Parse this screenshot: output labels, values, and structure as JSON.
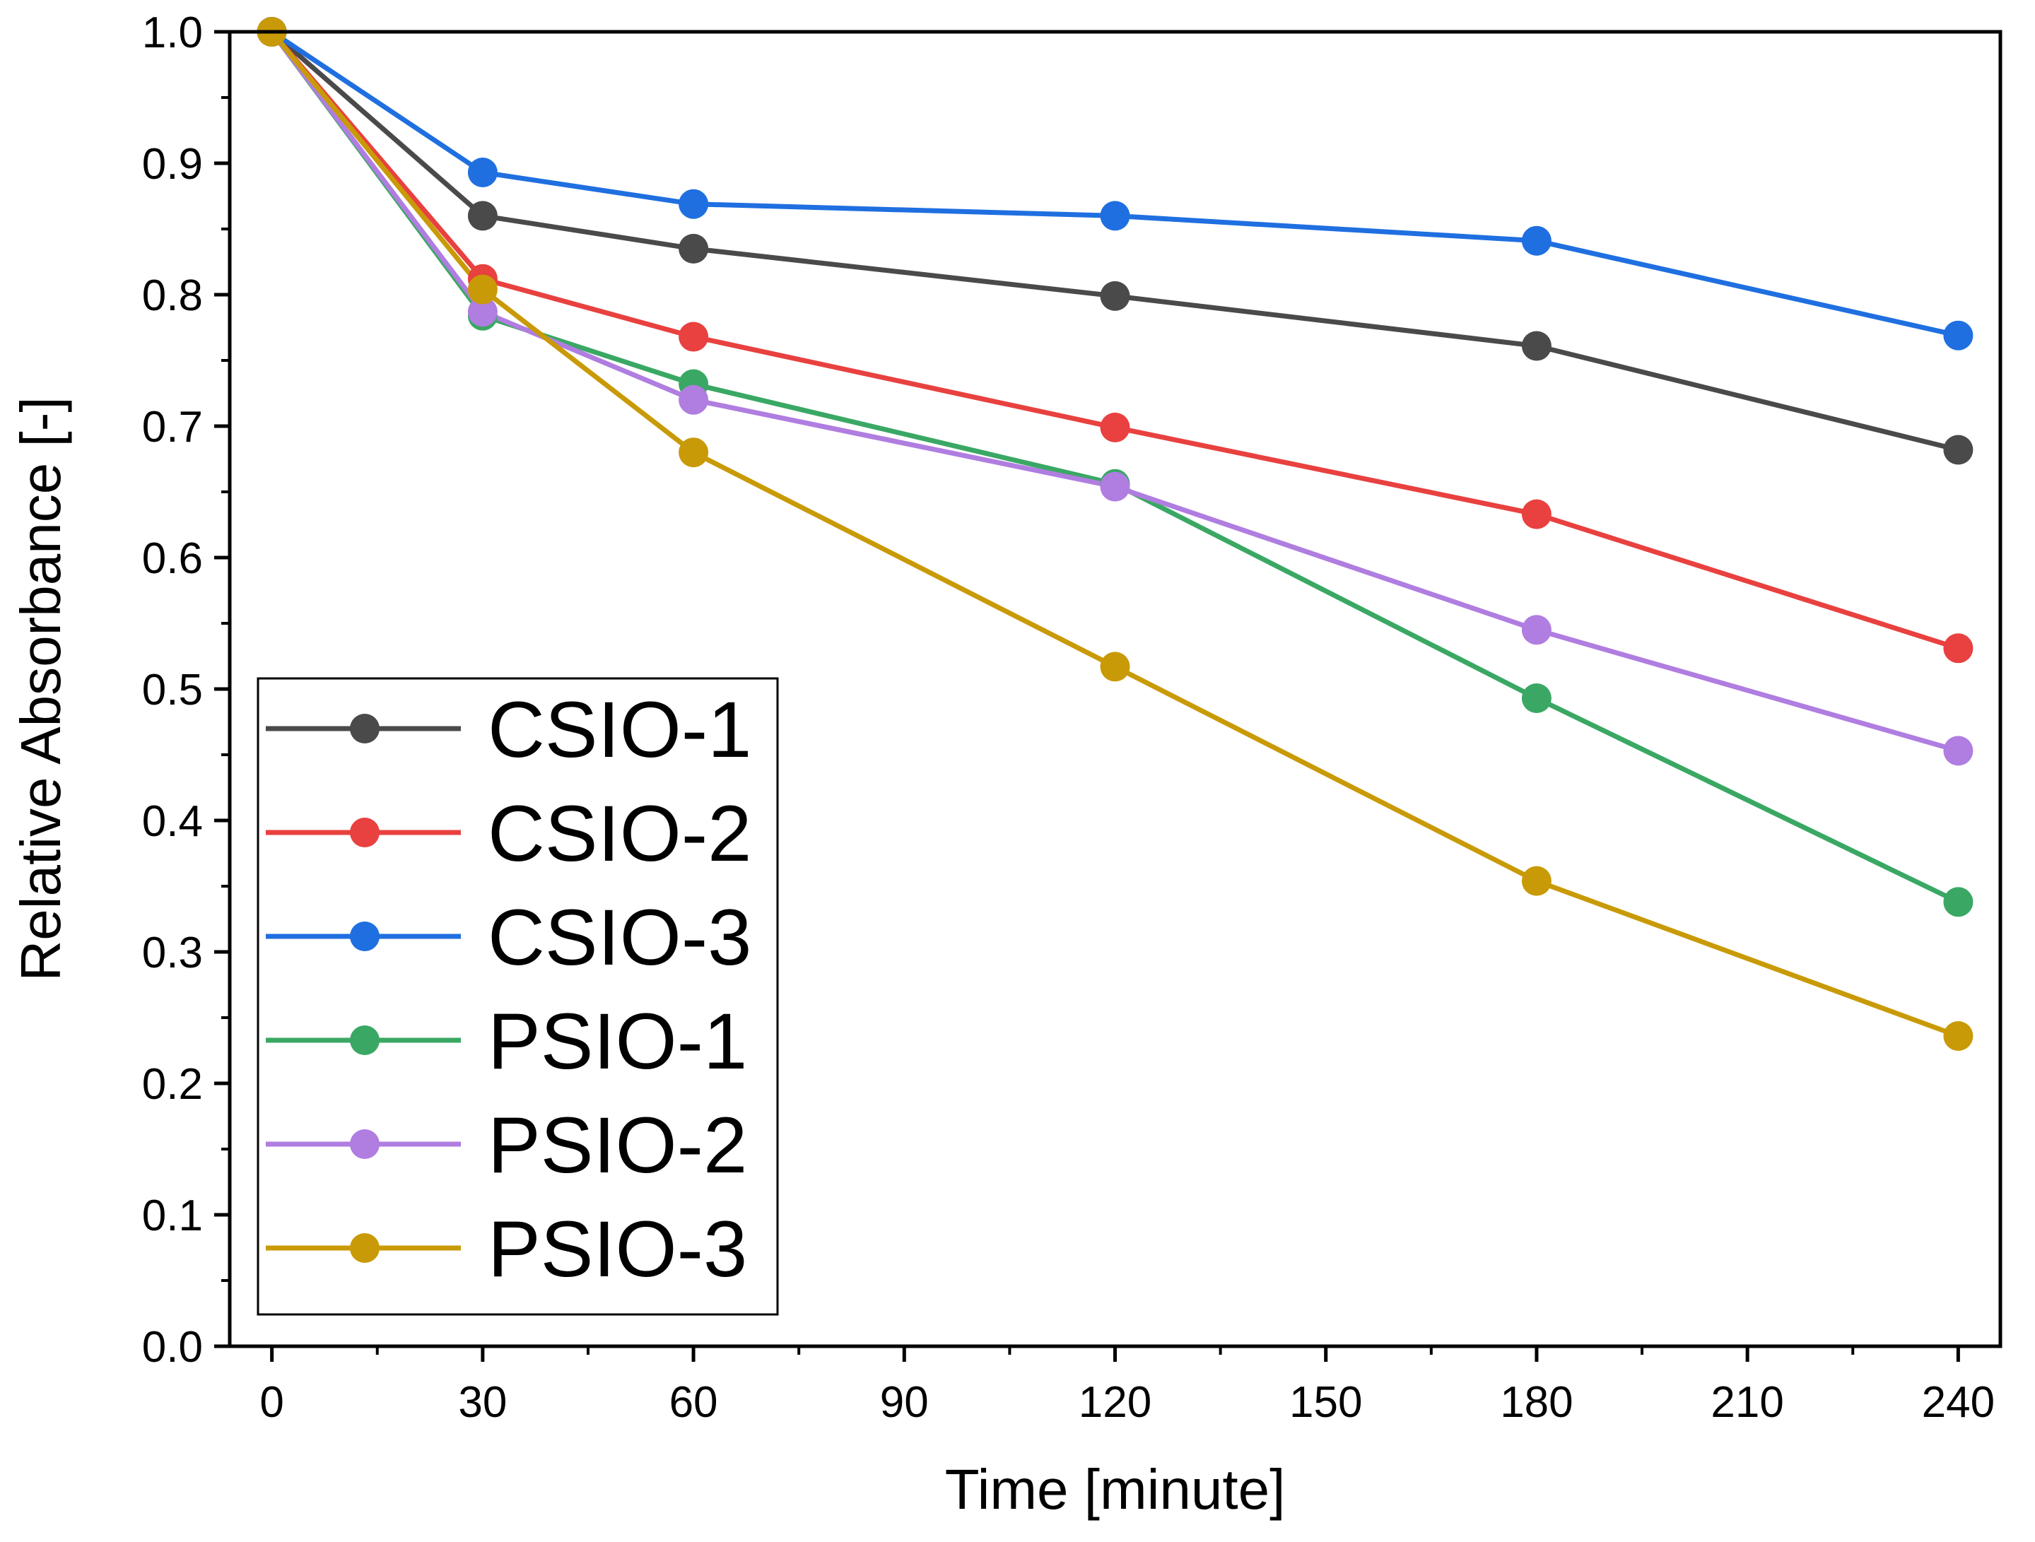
{
  "chart_data": {
    "type": "line",
    "title": "",
    "xlabel": "Time [minute]",
    "ylabel": "Relative Absorbance [-]",
    "xlim": [
      -6,
      246
    ],
    "ylim": [
      0.0,
      1.0
    ],
    "x": [
      0,
      30,
      60,
      120,
      180,
      240
    ],
    "x_ticks": [
      0,
      30,
      60,
      90,
      120,
      150,
      180,
      210,
      240
    ],
    "x_tick_labels": [
      "0",
      "30",
      "60",
      "90",
      "120",
      "150",
      "180",
      "210",
      "240"
    ],
    "y_ticks": [
      0.0,
      0.1,
      0.2,
      0.3,
      0.4,
      0.5,
      0.6,
      0.7,
      0.8,
      0.9,
      1.0
    ],
    "y_tick_labels": [
      "0.0",
      "0.1",
      "0.2",
      "0.3",
      "0.4",
      "0.5",
      "0.6",
      "0.7",
      "0.8",
      "0.9",
      "1.0"
    ],
    "grid": false,
    "legend_position": "bottom-left",
    "series": [
      {
        "name": "CSIO-1",
        "color": "#4a4a4a",
        "values": [
          1.0,
          0.86,
          0.835,
          0.799,
          0.761,
          0.682
        ]
      },
      {
        "name": "CSIO-2",
        "color": "#e8413f",
        "values": [
          1.0,
          0.812,
          0.768,
          0.699,
          0.633,
          0.531
        ]
      },
      {
        "name": "CSIO-3",
        "color": "#1f6fe0",
        "values": [
          1.0,
          0.893,
          0.869,
          0.86,
          0.841,
          0.769
        ]
      },
      {
        "name": "PSIO-1",
        "color": "#3aa864",
        "values": [
          1.0,
          0.784,
          0.732,
          0.656,
          0.493,
          0.338
        ]
      },
      {
        "name": "PSIO-2",
        "color": "#b07de0",
        "values": [
          1.0,
          0.787,
          0.72,
          0.654,
          0.545,
          0.453
        ]
      },
      {
        "name": "PSIO-3",
        "color": "#c99a07",
        "values": [
          1.0,
          0.804,
          0.68,
          0.517,
          0.354,
          0.236
        ]
      }
    ]
  }
}
